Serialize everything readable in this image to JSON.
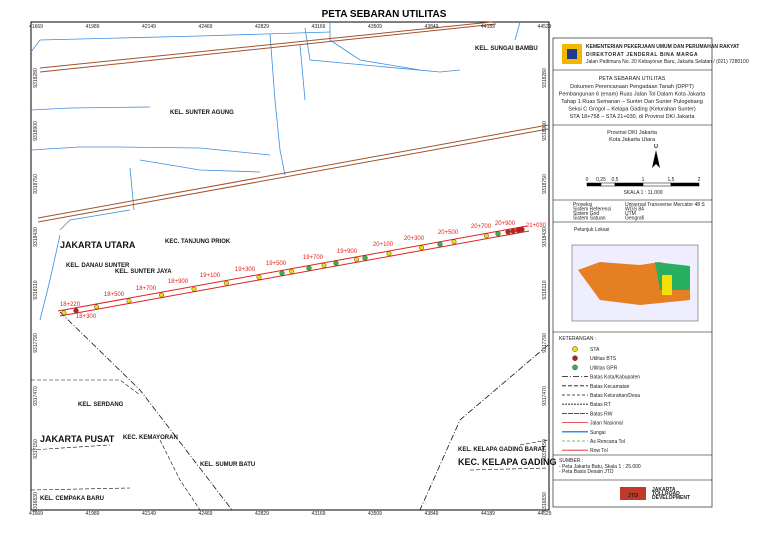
{
  "title": "PETA SEBARAN UTILITAS",
  "grid": {
    "top": [
      "41669",
      "41989",
      "42149",
      "42469",
      "42829",
      "43169",
      "43509",
      "43849",
      "44189",
      "44529"
    ],
    "left": [
      "9318280",
      "9318900",
      "9318750",
      "9318430",
      "9318110",
      "9317790",
      "9317470",
      "9317150",
      "9316830"
    ]
  },
  "places": [
    "KEL. SUNGAI BAMBU",
    "KEL. SUNTER AGUNG",
    "KEL. DANAU SUNTER",
    "KEL. SUNTER JAYA",
    "KEL. SERDANG",
    "KEC. KEMAYORAN",
    "KEL. SUMUR BATU",
    "KEL. CEMPAKA BARU",
    "KEL. KELAPA GADING BARAT"
  ],
  "regions": [
    "JAKARTA UTARA",
    "KEC. TANJUNG PRIOK",
    "JAKARTA PUSAT",
    "KEC. KELAPA GADING"
  ],
  "sta": [
    "18+220",
    "18+300",
    "18+500",
    "18+700",
    "18+900",
    "19+100",
    "19+300",
    "19+500",
    "19+700",
    "19+900",
    "20+100",
    "20+300",
    "20+500",
    "20+700",
    "20+900",
    "21+030"
  ],
  "panel": {
    "header": [
      "KEMENTERIAN PEKERJAAN UMUM DAN PERUMAHAN RAKYAT",
      "DIREKTORAT JENDERAL BINA MARGA",
      "Jalan Pattimura No. 20 Kebayoran Baru, Jakarta Selatan / (021) 7280100"
    ],
    "title": "PETA SEBARAN UTILITAS",
    "description": [
      "Dokumen Perencanaan Pengadaan Tanah (DPPT)",
      "Pembangunan 6 (enam) Ruas Jalan Tol Dalam Kota Jakarta",
      "Tahap 1 Ruas Semanan – Sunter Dan Sunter Pulogebang",
      "Seksi C Grogol – Kelapa Gading (Kelurahan Sunter)",
      "STA 18+758 – STA 21+030, di Provinsi DKI Jakarta"
    ],
    "location": [
      "Provinsi DKI Jakarta",
      "Kota Jakarta Utara"
    ],
    "north": "U",
    "scale_ticks": [
      "0",
      "0,25",
      "0,5",
      "1",
      "1,5",
      "2"
    ],
    "scale": "SKALA 1 : 11.000",
    "projection": [
      [
        "Proyeksi",
        "Universal Transverse Mercator 48 S"
      ],
      [
        "Sistem Referensi",
        "WGS 84"
      ],
      [
        "Sistem Grid",
        "UTM"
      ],
      [
        "Sistem Satuan",
        "Geografi"
      ]
    ],
    "inset_title": "Petunjuk Lokasi",
    "legend_title": "KETERANGAN :",
    "legend": [
      "STA",
      "Utilitas BTS",
      "Utilitas GPR",
      "Batas Kota/Kabupaten",
      "Batas Kecamatan",
      "Batas Kelurahan/Desa",
      "Batas RT",
      "Batas RW",
      "Jalan Nasional",
      "Sungai",
      "As Rencana Tol",
      "Row Tol"
    ],
    "source_title": "SUMBER :",
    "source": [
      "- Peta Jakarta Batu, Skala 1 : 25.000",
      "- Peta Basis Desain JTD"
    ],
    "logo": "JTD",
    "logo_text": [
      "JAKARTA",
      "TOLLROAD",
      "DEVELOPMENT"
    ]
  }
}
